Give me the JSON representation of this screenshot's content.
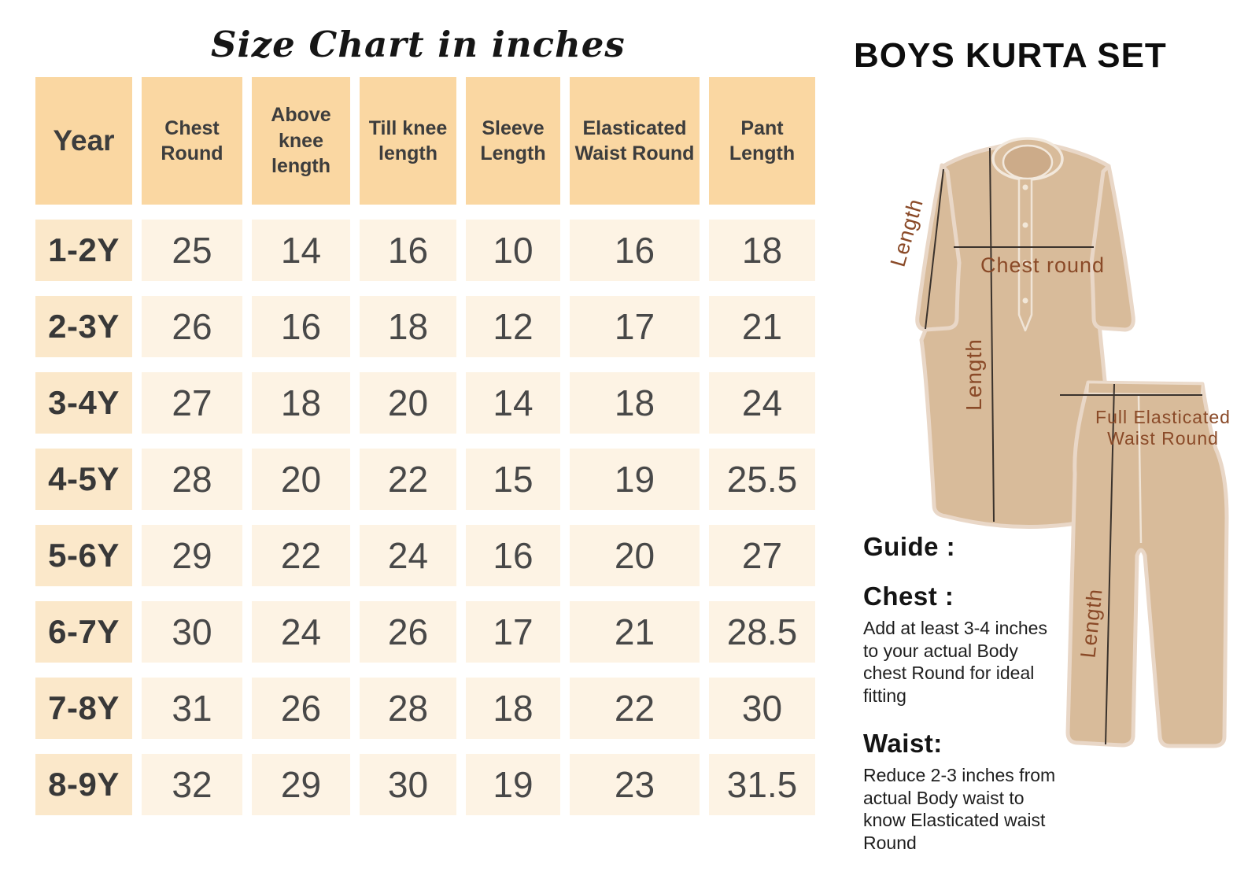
{
  "title": "Size Chart in inches",
  "table": {
    "columns": [
      "Year",
      "Chest Round",
      "Above knee length",
      "Till knee length",
      "Sleeve Length",
      "Elasticated Waist Round",
      "Pant Length"
    ],
    "rows": [
      {
        "year": "1-2Y",
        "values": [
          "25",
          "14",
          "16",
          "10",
          "16",
          "18"
        ]
      },
      {
        "year": "2-3Y",
        "values": [
          "26",
          "16",
          "18",
          "12",
          "17",
          "21"
        ]
      },
      {
        "year": "3-4Y",
        "values": [
          "27",
          "18",
          "20",
          "14",
          "18",
          "24"
        ]
      },
      {
        "year": "4-5Y",
        "values": [
          "28",
          "20",
          "22",
          "15",
          "19",
          "25.5"
        ]
      },
      {
        "year": "5-6Y",
        "values": [
          "29",
          "22",
          "24",
          "16",
          "20",
          "27"
        ]
      },
      {
        "year": "6-7Y",
        "values": [
          "30",
          "24",
          "26",
          "17",
          "21",
          "28.5"
        ]
      },
      {
        "year": "7-8Y",
        "values": [
          "31",
          "26",
          "28",
          "18",
          "22",
          "30"
        ]
      },
      {
        "year": "8-9Y",
        "values": [
          "32",
          "29",
          "30",
          "19",
          "23",
          "31.5"
        ]
      }
    ]
  },
  "product": {
    "title": "BOYS KURTA SET"
  },
  "illustration": {
    "labels": {
      "sleeve_length": "Length",
      "body_length": "Length",
      "chest_round": "Chest round",
      "waist_line1": "Full Elasticated",
      "waist_line2": "Waist Round",
      "pant_length": "Length"
    }
  },
  "guide": {
    "heading": "Guide :",
    "chest_heading": "Chest :",
    "chest_text": "Add at least 3-4 inches to your actual Body chest Round for ideal fitting",
    "waist_heading": "Waist:",
    "waist_text": "Reduce  2-3 inches from actual Body waist  to know Elasticated waist Round"
  },
  "colors": {
    "header_cell_bg": "#fad7a2",
    "year_cell_bg": "#fbe8ca",
    "value_cell_bg": "#fdf3e4",
    "table_text": "#3d3d3d",
    "garment_fill": "#d8bb9a",
    "garment_outline": "#e9d7c7",
    "annotation_line": "#3a322c",
    "annotation_label": "#8a4a28"
  }
}
